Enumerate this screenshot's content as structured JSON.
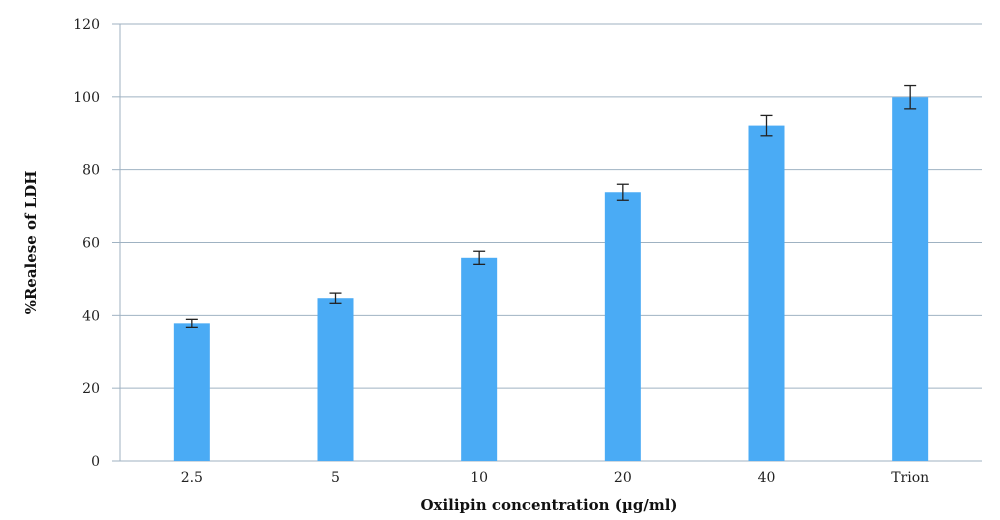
{
  "chart_data": {
    "type": "bar",
    "categories": [
      "2.5",
      "5",
      "10",
      "20",
      "40",
      "Trion"
    ],
    "values": [
      37.8,
      44.7,
      55.8,
      73.8,
      92.1,
      99.9
    ],
    "errors": [
      1.1,
      1.4,
      1.8,
      2.2,
      2.8,
      3.2
    ],
    "xlabel": "Oxilipin concentration (µg/ml)",
    "ylabel": "%Realese of LDH",
    "ylim": [
      0,
      120
    ],
    "yticks": [
      0,
      20,
      40,
      60,
      80,
      100,
      120
    ],
    "grid": true,
    "bar_color": "#4aabf5",
    "grid_color": "#9fb2c2",
    "error_bar_color": "#222222"
  }
}
